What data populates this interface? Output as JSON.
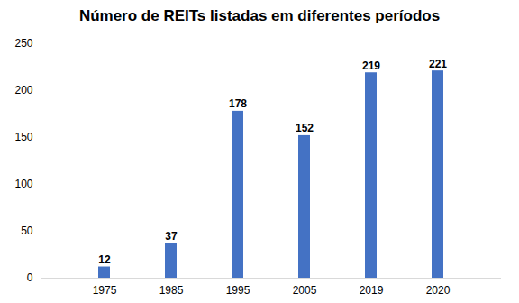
{
  "chart_data": {
    "type": "bar",
    "title": "Número de REITs listadas em diferentes períodos",
    "categories": [
      "1975",
      "1985",
      "1995",
      "2005",
      "2019",
      "2020"
    ],
    "values": [
      12,
      37,
      178,
      152,
      219,
      221
    ],
    "color": "#4472c4",
    "ylim": [
      0,
      250
    ],
    "yticks": [
      0,
      50,
      100,
      150,
      200,
      250
    ],
    "grid": false,
    "data_labels": true
  }
}
